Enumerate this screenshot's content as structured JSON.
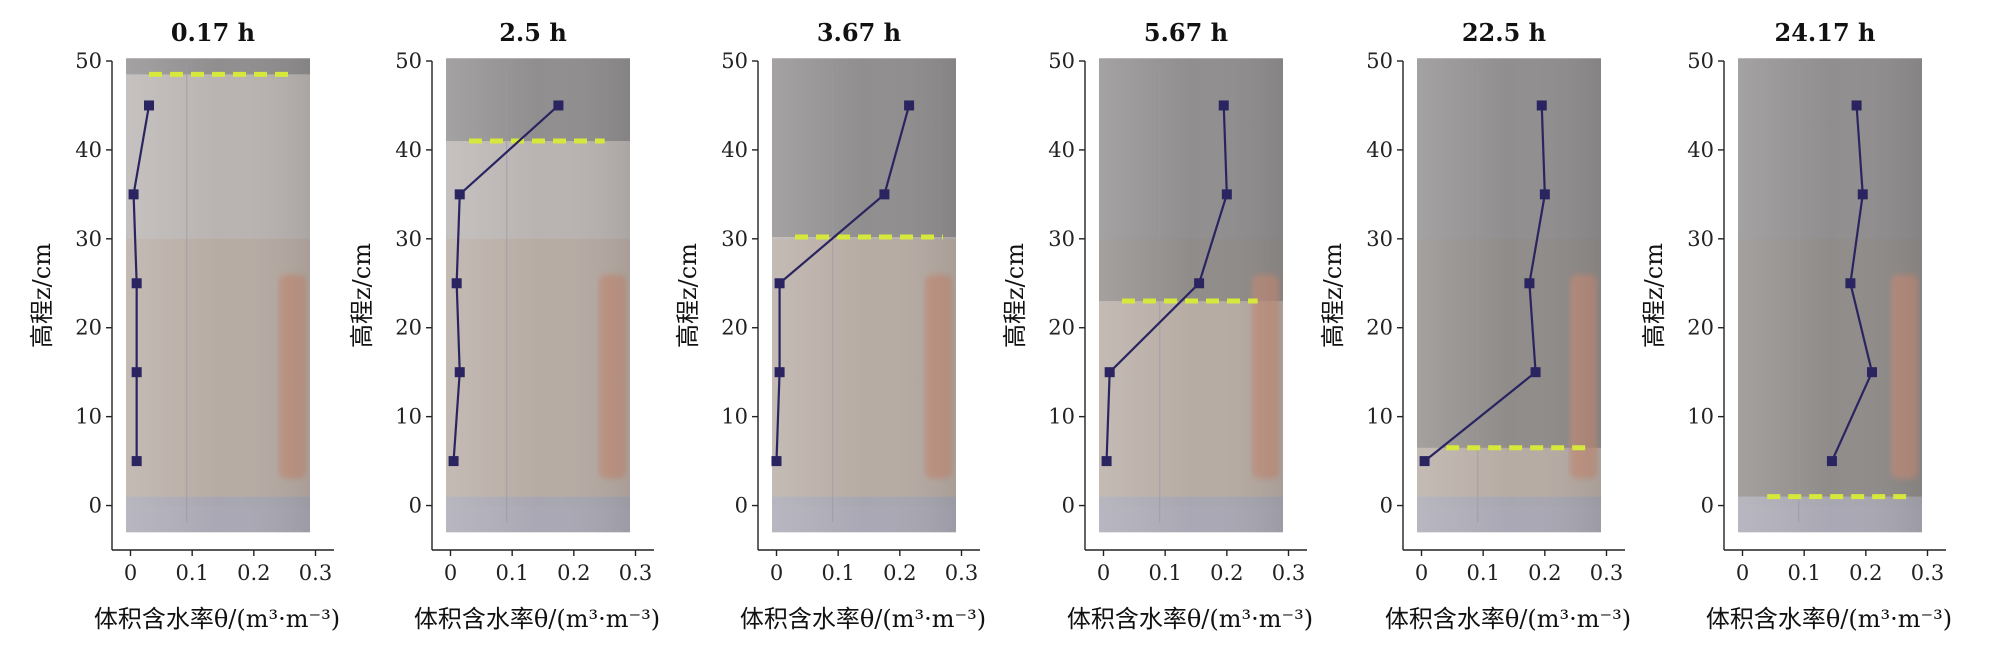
{
  "colors": {
    "series": "#2a2560",
    "water_level": "#d6e83c",
    "axis": "#222222",
    "column_dark": "#838181",
    "column_light": "#b9b4b2",
    "column_sand": "#b7a699",
    "column_red": "#c48d78"
  },
  "chart_data": [
    {
      "type": "line",
      "title": "0.17 h",
      "xlabel": "体积含水率θ/(m³·m⁻³)",
      "ylabel": "高程z/cm",
      "xlim": [
        -0.03,
        0.33
      ],
      "ylim": [
        -5,
        50
      ],
      "xticks": [
        "0",
        "0.1",
        "0.2",
        "0.3"
      ],
      "yticks": [
        "0",
        "10",
        "20",
        "30",
        "40",
        "50"
      ],
      "x": [
        0.01,
        0.01,
        0.01,
        0.005,
        0.03
      ],
      "y": [
        5,
        15,
        25,
        35,
        45
      ],
      "water_level": {
        "z": 48.5,
        "x_range": [
          0.03,
          0.26
        ]
      }
    },
    {
      "type": "line",
      "title": "2.5 h",
      "xlabel": "体积含水率θ/(m³·m⁻³)",
      "ylabel": "高程z/cm",
      "xlim": [
        -0.03,
        0.33
      ],
      "ylim": [
        -5,
        50
      ],
      "xticks": [
        "0",
        "0.1",
        "0.2",
        "0.3"
      ],
      "yticks": [
        "0",
        "10",
        "20",
        "30",
        "40",
        "50"
      ],
      "x": [
        0.005,
        0.015,
        0.01,
        0.015,
        0.175
      ],
      "y": [
        5,
        15,
        25,
        35,
        45
      ],
      "water_level": {
        "z": 41,
        "x_range": [
          0.03,
          0.25
        ]
      }
    },
    {
      "type": "line",
      "title": "3.67 h",
      "xlabel": "体积含水率θ/(m³·m⁻³)",
      "ylabel": "高程z/cm",
      "xlim": [
        -0.03,
        0.33
      ],
      "ylim": [
        -5,
        50
      ],
      "xticks": [
        "0",
        "0.1",
        "0.2",
        "0.3"
      ],
      "yticks": [
        "0",
        "10",
        "20",
        "30",
        "40",
        "50"
      ],
      "x": [
        0.0,
        0.005,
        0.005,
        0.175,
        0.215
      ],
      "y": [
        5,
        15,
        25,
        35,
        45
      ],
      "water_level": {
        "z": 30.2,
        "x_range": [
          0.03,
          0.27
        ]
      }
    },
    {
      "type": "line",
      "title": "5.67 h",
      "xlabel": "体积含水率θ/(m³·m⁻³)",
      "ylabel": "高程z/cm",
      "xlim": [
        -0.03,
        0.33
      ],
      "ylim": [
        -5,
        50
      ],
      "xticks": [
        "0",
        "0.1",
        "0.2",
        "0.3"
      ],
      "yticks": [
        "0",
        "10",
        "20",
        "30",
        "40",
        "50"
      ],
      "x": [
        0.005,
        0.01,
        0.155,
        0.2,
        0.195
      ],
      "y": [
        5,
        15,
        25,
        35,
        45
      ],
      "water_level": {
        "z": 23,
        "x_range": [
          0.03,
          0.25
        ]
      }
    },
    {
      "type": "line",
      "title": "22.5 h",
      "xlabel": "体积含水率θ/(m³·m⁻³)",
      "ylabel": "高程z/cm",
      "xlim": [
        -0.03,
        0.33
      ],
      "ylim": [
        -5,
        50
      ],
      "xticks": [
        "0",
        "0.1",
        "0.2",
        "0.3"
      ],
      "yticks": [
        "0",
        "10",
        "20",
        "30",
        "40",
        "50"
      ],
      "x": [
        0.005,
        0.185,
        0.175,
        0.2,
        0.195
      ],
      "y": [
        5,
        15,
        25,
        35,
        45
      ],
      "water_level": {
        "z": 6.5,
        "x_range": [
          0.04,
          0.27
        ]
      }
    },
    {
      "type": "line",
      "title": "24.17 h",
      "xlabel": "体积含水率θ/(m³·m⁻³)",
      "ylabel": "高程z/cm",
      "xlim": [
        -0.03,
        0.33
      ],
      "ylim": [
        -5,
        50
      ],
      "xticks": [
        "0",
        "0.1",
        "0.2",
        "0.3"
      ],
      "yticks": [
        "0",
        "10",
        "20",
        "30",
        "40",
        "50"
      ],
      "x": [
        0.145,
        0.21,
        0.175,
        0.195,
        0.185
      ],
      "y": [
        5,
        15,
        25,
        35,
        45
      ],
      "water_level": {
        "z": 1,
        "x_range": [
          0.04,
          0.27
        ]
      }
    }
  ]
}
